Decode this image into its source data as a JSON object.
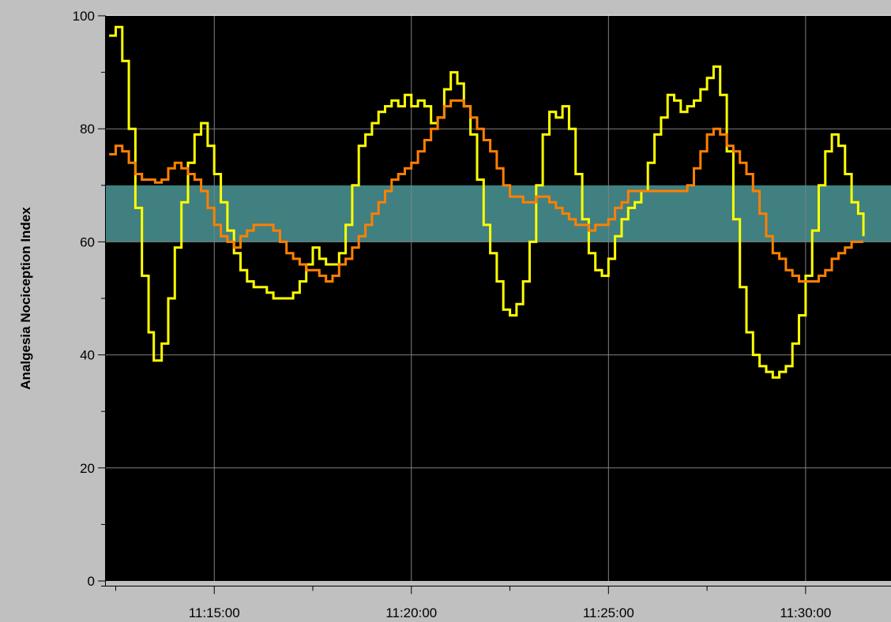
{
  "chart_data": {
    "type": "line",
    "title": "",
    "xlabel": "",
    "ylabel": "Analgesia Nociception Index",
    "ylim": [
      0,
      100
    ],
    "xlim": [
      "11:12:15",
      "11:32:10"
    ],
    "y_ticks": [
      0,
      20,
      40,
      60,
      80,
      100
    ],
    "y_minor_step": 10,
    "x_ticks": [
      "11:15:00",
      "11:20:00",
      "11:25:00",
      "11:30:00"
    ],
    "x_minor_ticks": [
      "11:12:30",
      "11:17:30",
      "11:22:30",
      "11:27:30",
      "11:32:30"
    ],
    "grid": true,
    "legend": "none",
    "background_color": "#000000",
    "plot_frame_color": "#c0c0c0",
    "gridline_color": "#808080",
    "target_band": {
      "low": 60,
      "high": 70,
      "color": "#408080"
    },
    "series": [
      {
        "color": "#ffff00",
        "points": [
          [
            "11:12:20",
            96.5
          ],
          [
            "11:12:30",
            98
          ],
          [
            "11:12:40",
            92
          ],
          [
            "11:12:50",
            80
          ],
          [
            "11:13:00",
            66
          ],
          [
            "11:13:10",
            54
          ],
          [
            "11:13:20",
            44
          ],
          [
            "11:13:28",
            39
          ],
          [
            "11:13:40",
            42
          ],
          [
            "11:13:50",
            50
          ],
          [
            "11:14:00",
            59
          ],
          [
            "11:14:10",
            67
          ],
          [
            "11:14:20",
            74
          ],
          [
            "11:14:30",
            79
          ],
          [
            "11:14:40",
            81
          ],
          [
            "11:14:50",
            77
          ],
          [
            "11:15:00",
            72
          ],
          [
            "11:15:10",
            67
          ],
          [
            "11:15:20",
            62
          ],
          [
            "11:15:30",
            58
          ],
          [
            "11:15:40",
            55
          ],
          [
            "11:15:50",
            53
          ],
          [
            "11:16:00",
            52
          ],
          [
            "11:16:10",
            52
          ],
          [
            "11:16:20",
            51
          ],
          [
            "11:16:30",
            50
          ],
          [
            "11:16:40",
            50
          ],
          [
            "11:16:50",
            50
          ],
          [
            "11:17:00",
            51
          ],
          [
            "11:17:10",
            53
          ],
          [
            "11:17:20",
            56
          ],
          [
            "11:17:30",
            59
          ],
          [
            "11:17:40",
            57
          ],
          [
            "11:17:50",
            56
          ],
          [
            "11:18:00",
            56
          ],
          [
            "11:18:10",
            58
          ],
          [
            "11:18:20",
            63
          ],
          [
            "11:18:30",
            70
          ],
          [
            "11:18:40",
            77
          ],
          [
            "11:18:50",
            79
          ],
          [
            "11:19:00",
            81
          ],
          [
            "11:19:10",
            83
          ],
          [
            "11:19:20",
            84
          ],
          [
            "11:19:30",
            85
          ],
          [
            "11:19:40",
            84
          ],
          [
            "11:19:50",
            86
          ],
          [
            "11:20:00",
            84
          ],
          [
            "11:20:10",
            85
          ],
          [
            "11:20:20",
            84
          ],
          [
            "11:20:30",
            81
          ],
          [
            "11:20:40",
            82
          ],
          [
            "11:20:50",
            87
          ],
          [
            "11:21:00",
            90
          ],
          [
            "11:21:10",
            88
          ],
          [
            "11:21:20",
            84
          ],
          [
            "11:21:30",
            79
          ],
          [
            "11:21:40",
            71
          ],
          [
            "11:21:50",
            63
          ],
          [
            "11:22:00",
            58
          ],
          [
            "11:22:10",
            53
          ],
          [
            "11:22:20",
            48
          ],
          [
            "11:22:30",
            47
          ],
          [
            "11:22:40",
            49
          ],
          [
            "11:22:50",
            53
          ],
          [
            "11:23:00",
            60
          ],
          [
            "11:23:10",
            70
          ],
          [
            "11:23:20",
            79
          ],
          [
            "11:23:30",
            83
          ],
          [
            "11:23:40",
            82
          ],
          [
            "11:23:50",
            84
          ],
          [
            "11:24:00",
            80
          ],
          [
            "11:24:10",
            72
          ],
          [
            "11:24:20",
            64
          ],
          [
            "11:24:30",
            58
          ],
          [
            "11:24:40",
            55
          ],
          [
            "11:24:50",
            54
          ],
          [
            "11:25:00",
            57
          ],
          [
            "11:25:10",
            61
          ],
          [
            "11:25:20",
            64
          ],
          [
            "11:25:30",
            66
          ],
          [
            "11:25:40",
            67
          ],
          [
            "11:25:50",
            69
          ],
          [
            "11:26:00",
            74
          ],
          [
            "11:26:10",
            79
          ],
          [
            "11:26:20",
            82
          ],
          [
            "11:26:30",
            86
          ],
          [
            "11:26:40",
            85
          ],
          [
            "11:26:50",
            83
          ],
          [
            "11:27:00",
            84
          ],
          [
            "11:27:10",
            85
          ],
          [
            "11:27:20",
            87
          ],
          [
            "11:27:30",
            89
          ],
          [
            "11:27:40",
            91
          ],
          [
            "11:27:50",
            86
          ],
          [
            "11:28:00",
            76
          ],
          [
            "11:28:10",
            64
          ],
          [
            "11:28:20",
            52
          ],
          [
            "11:28:30",
            44
          ],
          [
            "11:28:40",
            40
          ],
          [
            "11:28:50",
            38
          ],
          [
            "11:29:00",
            37
          ],
          [
            "11:29:10",
            36
          ],
          [
            "11:29:20",
            37
          ],
          [
            "11:29:30",
            38
          ],
          [
            "11:29:40",
            42
          ],
          [
            "11:29:50",
            47
          ],
          [
            "11:30:00",
            54
          ],
          [
            "11:30:10",
            62
          ],
          [
            "11:30:20",
            70
          ],
          [
            "11:30:30",
            76
          ],
          [
            "11:30:40",
            79
          ],
          [
            "11:30:50",
            77
          ],
          [
            "11:31:00",
            72
          ],
          [
            "11:31:10",
            67
          ],
          [
            "11:31:20",
            65
          ],
          [
            "11:31:28",
            61
          ]
        ]
      },
      {
        "color": "#ff8000",
        "points": [
          [
            "11:12:20",
            75.5
          ],
          [
            "11:12:30",
            77
          ],
          [
            "11:12:40",
            76
          ],
          [
            "11:12:50",
            74
          ],
          [
            "11:13:00",
            72
          ],
          [
            "11:13:10",
            71
          ],
          [
            "11:13:20",
            71
          ],
          [
            "11:13:30",
            70.5
          ],
          [
            "11:13:40",
            71
          ],
          [
            "11:13:50",
            73
          ],
          [
            "11:14:00",
            74
          ],
          [
            "11:14:10",
            73
          ],
          [
            "11:14:20",
            72
          ],
          [
            "11:14:30",
            71
          ],
          [
            "11:14:40",
            69
          ],
          [
            "11:14:50",
            66
          ],
          [
            "11:15:00",
            63
          ],
          [
            "11:15:10",
            61
          ],
          [
            "11:15:20",
            60
          ],
          [
            "11:15:30",
            59
          ],
          [
            "11:15:40",
            61
          ],
          [
            "11:15:50",
            62
          ],
          [
            "11:16:00",
            63
          ],
          [
            "11:16:10",
            63
          ],
          [
            "11:16:20",
            63
          ],
          [
            "11:16:30",
            62
          ],
          [
            "11:16:40",
            60
          ],
          [
            "11:16:50",
            58
          ],
          [
            "11:17:00",
            57
          ],
          [
            "11:17:10",
            56
          ],
          [
            "11:17:20",
            55
          ],
          [
            "11:17:30",
            55
          ],
          [
            "11:17:40",
            54
          ],
          [
            "11:17:50",
            53
          ],
          [
            "11:18:00",
            54
          ],
          [
            "11:18:10",
            56
          ],
          [
            "11:18:20",
            57
          ],
          [
            "11:18:30",
            59
          ],
          [
            "11:18:40",
            61
          ],
          [
            "11:18:50",
            63
          ],
          [
            "11:19:00",
            65
          ],
          [
            "11:19:10",
            67
          ],
          [
            "11:19:20",
            69
          ],
          [
            "11:19:30",
            71
          ],
          [
            "11:19:40",
            72
          ],
          [
            "11:19:50",
            73
          ],
          [
            "11:20:00",
            74
          ],
          [
            "11:20:10",
            76
          ],
          [
            "11:20:20",
            78
          ],
          [
            "11:20:30",
            80
          ],
          [
            "11:20:40",
            82
          ],
          [
            "11:20:50",
            84
          ],
          [
            "11:21:00",
            85
          ],
          [
            "11:21:10",
            85
          ],
          [
            "11:21:20",
            84
          ],
          [
            "11:21:30",
            82
          ],
          [
            "11:21:40",
            80
          ],
          [
            "11:21:50",
            78
          ],
          [
            "11:22:00",
            76
          ],
          [
            "11:22:10",
            73
          ],
          [
            "11:22:20",
            70
          ],
          [
            "11:22:30",
            68
          ],
          [
            "11:22:40",
            68
          ],
          [
            "11:22:50",
            67
          ],
          [
            "11:23:00",
            67
          ],
          [
            "11:23:10",
            68
          ],
          [
            "11:23:20",
            68
          ],
          [
            "11:23:30",
            67
          ],
          [
            "11:23:40",
            66
          ],
          [
            "11:23:50",
            65
          ],
          [
            "11:24:00",
            64
          ],
          [
            "11:24:10",
            63
          ],
          [
            "11:24:20",
            63
          ],
          [
            "11:24:30",
            62
          ],
          [
            "11:24:40",
            63
          ],
          [
            "11:24:50",
            63
          ],
          [
            "11:25:00",
            64
          ],
          [
            "11:25:10",
            66
          ],
          [
            "11:25:20",
            67
          ],
          [
            "11:25:30",
            69
          ],
          [
            "11:25:40",
            69
          ],
          [
            "11:25:50",
            69
          ],
          [
            "11:26:00",
            69
          ],
          [
            "11:26:10",
            69
          ],
          [
            "11:26:20",
            69
          ],
          [
            "11:26:30",
            69
          ],
          [
            "11:26:40",
            69
          ],
          [
            "11:26:50",
            69
          ],
          [
            "11:27:00",
            70
          ],
          [
            "11:27:10",
            73
          ],
          [
            "11:27:20",
            76
          ],
          [
            "11:27:30",
            79
          ],
          [
            "11:27:40",
            80
          ],
          [
            "11:27:50",
            79
          ],
          [
            "11:28:00",
            77
          ],
          [
            "11:28:10",
            76
          ],
          [
            "11:28:20",
            74
          ],
          [
            "11:28:30",
            72
          ],
          [
            "11:28:40",
            69
          ],
          [
            "11:28:50",
            65
          ],
          [
            "11:29:00",
            61
          ],
          [
            "11:29:10",
            58
          ],
          [
            "11:29:20",
            57
          ],
          [
            "11:29:30",
            55
          ],
          [
            "11:29:40",
            54
          ],
          [
            "11:29:50",
            53
          ],
          [
            "11:30:00",
            53
          ],
          [
            "11:30:10",
            53
          ],
          [
            "11:30:20",
            54
          ],
          [
            "11:30:30",
            55
          ],
          [
            "11:30:40",
            57
          ],
          [
            "11:30:50",
            58
          ],
          [
            "11:31:00",
            59
          ],
          [
            "11:31:10",
            60
          ],
          [
            "11:31:20",
            60
          ],
          [
            "11:31:28",
            60
          ]
        ]
      }
    ]
  }
}
